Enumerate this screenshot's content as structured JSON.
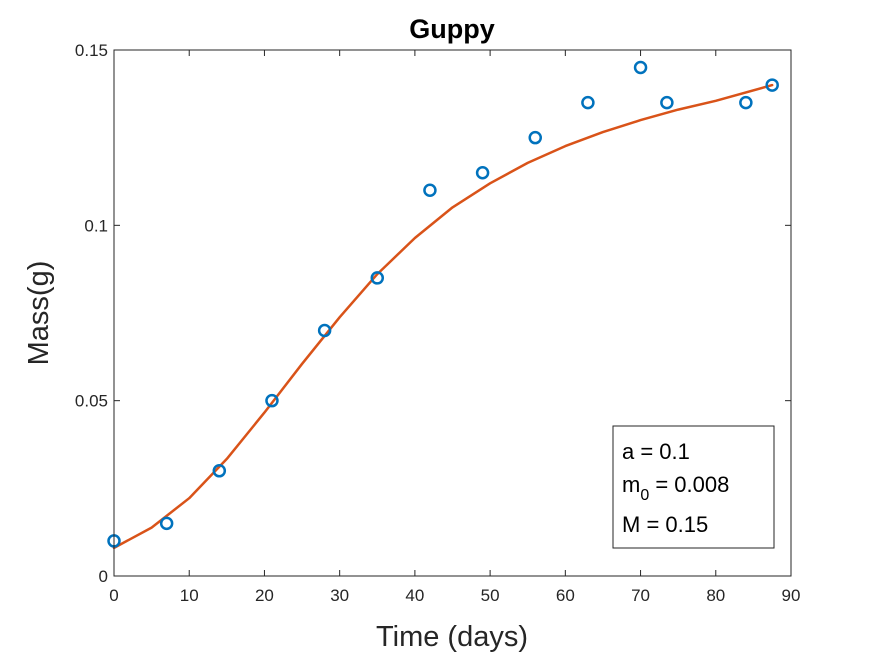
{
  "chart_data": {
    "type": "scatter",
    "title": "Guppy",
    "xlabel": "Time (days)",
    "ylabel": "Mass(g)",
    "xlim": [
      0,
      90
    ],
    "ylim": [
      0,
      0.15
    ],
    "xticks": [
      "0",
      "10",
      "20",
      "30",
      "40",
      "50",
      "60",
      "70",
      "80",
      "90"
    ],
    "yticks": [
      "0",
      "0.05",
      "0.1",
      "0.15"
    ],
    "grid": false,
    "series": [
      {
        "kind": "scatter",
        "marker": "open-circle",
        "color": "#0072BD",
        "x": [
          0,
          7,
          14,
          21,
          28,
          35,
          42,
          49,
          56,
          63,
          70,
          73.5,
          84,
          87.5
        ],
        "y": [
          0.01,
          0.015,
          0.03,
          0.05,
          0.07,
          0.085,
          0.11,
          0.115,
          0.125,
          0.135,
          0.145,
          0.135,
          0.135,
          0.14
        ]
      },
      {
        "kind": "line",
        "color": "#D95319",
        "x": [
          0,
          5,
          10,
          15,
          20,
          25,
          30,
          35,
          40,
          45,
          50,
          55,
          60,
          65,
          70,
          75,
          80,
          87.5
        ],
        "y": [
          0.008,
          0.0138,
          0.0222,
          0.0334,
          0.0466,
          0.0605,
          0.0738,
          0.0861,
          0.0964,
          0.1051,
          0.112,
          0.1178,
          0.1226,
          0.1266,
          0.13,
          0.133,
          0.1355,
          0.14
        ]
      }
    ],
    "annotation": {
      "position": "bottom-right",
      "lines": [
        {
          "main": "a = 0.1",
          "sub": "",
          "rest": ""
        },
        {
          "main": "m",
          "sub": "0",
          "rest": " = 0.008"
        },
        {
          "main": "M = 0.15",
          "sub": "",
          "rest": ""
        }
      ]
    }
  }
}
